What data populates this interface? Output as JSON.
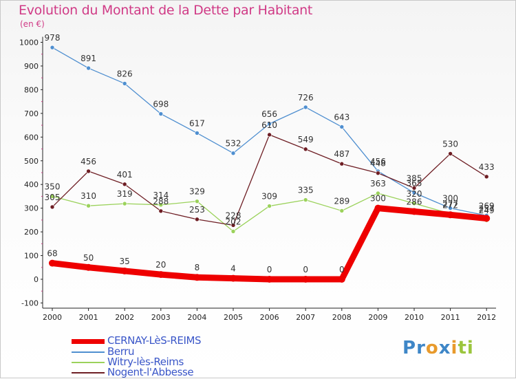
{
  "chart_data": {
    "type": "line",
    "title": "Evolution du Montant de la Dette par Habitant",
    "subtitle": "(en €)",
    "x": [
      "2000",
      "2001",
      "2002",
      "2003",
      "2004",
      "2005",
      "2006",
      "2007",
      "2008",
      "2009",
      "2010",
      "2011",
      "2012"
    ],
    "ylim": [
      -100,
      1000
    ],
    "yticks": [
      -100,
      0,
      100,
      200,
      300,
      400,
      500,
      600,
      700,
      800,
      900,
      1000
    ],
    "grid": false,
    "legend_position": "bottom-left",
    "series": [
      {
        "name": "Berru",
        "color": "#4f8fd0",
        "labels": [
          "978",
          "891",
          "826",
          "698",
          "617",
          "532",
          "656",
          "726",
          "643",
          "456",
          "365",
          "300",
          "269"
        ],
        "values": [
          978,
          891,
          826,
          698,
          617,
          532,
          656,
          726,
          643,
          456,
          365,
          300,
          269
        ]
      },
      {
        "name": "Witry-lès-Reims",
        "color": "#9bd25b",
        "labels": [
          "350",
          "310",
          "319",
          "314",
          "329",
          "202",
          "309",
          "335",
          "289",
          "363",
          "320",
          "277",
          "249"
        ],
        "values": [
          350,
          310,
          319,
          314,
          329,
          202,
          309,
          335,
          289,
          363,
          320,
          277,
          249
        ]
      },
      {
        "name": "Nogent-l'Abbesse",
        "color": "#6e1e24",
        "labels": [
          "305",
          "456",
          "401",
          "288",
          "253",
          "228",
          "610",
          "549",
          "487",
          "448",
          "385",
          "530",
          "433"
        ],
        "values": [
          305,
          456,
          401,
          288,
          253,
          228,
          610,
          549,
          487,
          448,
          385,
          530,
          433
        ]
      },
      {
        "name": "CERNAY-LèS-REIMS",
        "color": "#ee0000",
        "labels": [
          "68",
          "50",
          "35",
          "20",
          "8",
          "4",
          "0",
          "0",
          "0",
          "300",
          "286",
          "272",
          "257"
        ],
        "values": [
          68,
          50,
          35,
          20,
          8,
          4,
          0,
          0,
          0,
          300,
          286,
          272,
          257
        ]
      }
    ]
  },
  "legend": [
    {
      "label": "CERNAY-LèS-REIMS",
      "color": "#ee0000",
      "label_color": "#3a56c8"
    },
    {
      "label": "Berru",
      "color": "#4f8fd0",
      "label_color": "#3a56c8"
    },
    {
      "label": "Witry-lès-Reims",
      "color": "#9bd25b",
      "label_color": "#3a56c8"
    },
    {
      "label": "Nogent-l'Abbesse",
      "color": "#6e1e24",
      "label_color": "#3a56c8"
    }
  ],
  "logo": {
    "letters": [
      "P",
      "r",
      "o",
      "x",
      "i",
      "t",
      "i"
    ],
    "colors": [
      "#3e86c7",
      "#3e86c7",
      "#e89a2c",
      "#3e86c7",
      "#e89a2c",
      "#9bc53d",
      "#9bc53d"
    ]
  },
  "colors": {
    "title": "#d03a86",
    "axis": "#222222",
    "label_text": "#333333"
  }
}
